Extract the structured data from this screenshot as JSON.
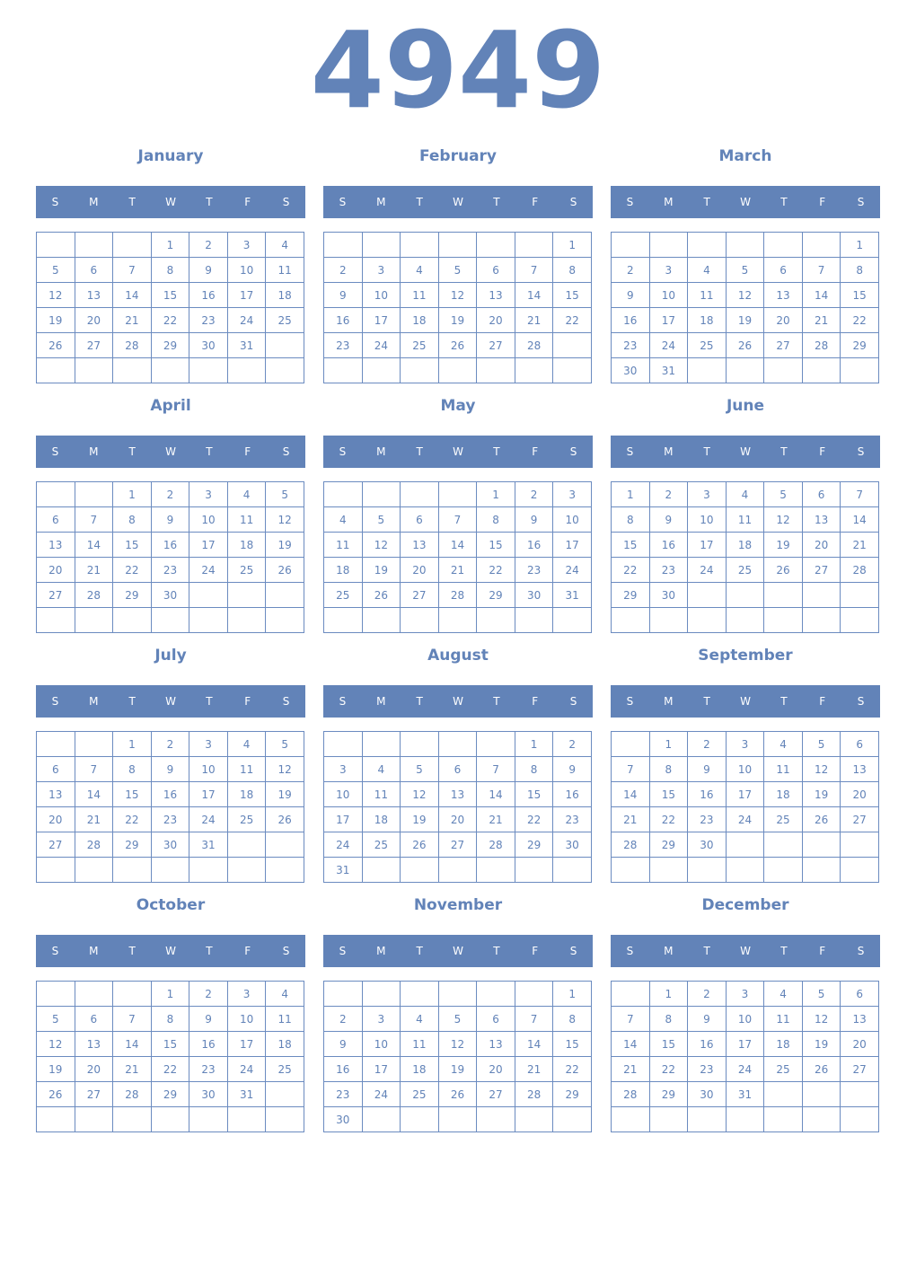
{
  "year": "4949",
  "weekday_labels": [
    "S",
    "M",
    "T",
    "W",
    "T",
    "F",
    "S"
  ],
  "colors": {
    "accent": "#6283b8",
    "header_text": "#ffffff"
  },
  "months": [
    {
      "name": "January",
      "weeks": [
        [
          "",
          "",
          "",
          1,
          2,
          3,
          4
        ],
        [
          5,
          6,
          7,
          8,
          9,
          10,
          11
        ],
        [
          12,
          13,
          14,
          15,
          16,
          17,
          18
        ],
        [
          19,
          20,
          21,
          22,
          23,
          24,
          25
        ],
        [
          26,
          27,
          28,
          29,
          30,
          31,
          ""
        ],
        [
          "",
          "",
          "",
          "",
          "",
          "",
          ""
        ]
      ]
    },
    {
      "name": "February",
      "weeks": [
        [
          "",
          "",
          "",
          "",
          "",
          "",
          1
        ],
        [
          2,
          3,
          4,
          5,
          6,
          7,
          8
        ],
        [
          9,
          10,
          11,
          12,
          13,
          14,
          15
        ],
        [
          16,
          17,
          18,
          19,
          20,
          21,
          22
        ],
        [
          23,
          24,
          25,
          26,
          27,
          28,
          ""
        ],
        [
          "",
          "",
          "",
          "",
          "",
          "",
          ""
        ]
      ]
    },
    {
      "name": "March",
      "weeks": [
        [
          "",
          "",
          "",
          "",
          "",
          "",
          1
        ],
        [
          2,
          3,
          4,
          5,
          6,
          7,
          8
        ],
        [
          9,
          10,
          11,
          12,
          13,
          14,
          15
        ],
        [
          16,
          17,
          18,
          19,
          20,
          21,
          22
        ],
        [
          23,
          24,
          25,
          26,
          27,
          28,
          29
        ],
        [
          30,
          31,
          "",
          "",
          "",
          "",
          ""
        ]
      ]
    },
    {
      "name": "April",
      "weeks": [
        [
          "",
          "",
          1,
          2,
          3,
          4,
          5
        ],
        [
          6,
          7,
          8,
          9,
          10,
          11,
          12
        ],
        [
          13,
          14,
          15,
          16,
          17,
          18,
          19
        ],
        [
          20,
          21,
          22,
          23,
          24,
          25,
          26
        ],
        [
          27,
          28,
          29,
          30,
          "",
          "",
          ""
        ],
        [
          "",
          "",
          "",
          "",
          "",
          "",
          ""
        ]
      ]
    },
    {
      "name": "May",
      "weeks": [
        [
          "",
          "",
          "",
          "",
          1,
          2,
          3
        ],
        [
          4,
          5,
          6,
          7,
          8,
          9,
          10
        ],
        [
          11,
          12,
          13,
          14,
          15,
          16,
          17
        ],
        [
          18,
          19,
          20,
          21,
          22,
          23,
          24
        ],
        [
          25,
          26,
          27,
          28,
          29,
          30,
          31
        ],
        [
          "",
          "",
          "",
          "",
          "",
          "",
          ""
        ]
      ]
    },
    {
      "name": "June",
      "weeks": [
        [
          1,
          2,
          3,
          4,
          5,
          6,
          7
        ],
        [
          8,
          9,
          10,
          11,
          12,
          13,
          14
        ],
        [
          15,
          16,
          17,
          18,
          19,
          20,
          21
        ],
        [
          22,
          23,
          24,
          25,
          26,
          27,
          28
        ],
        [
          29,
          30,
          "",
          "",
          "",
          "",
          ""
        ],
        [
          "",
          "",
          "",
          "",
          "",
          "",
          ""
        ]
      ]
    },
    {
      "name": "July",
      "weeks": [
        [
          "",
          "",
          1,
          2,
          3,
          4,
          5
        ],
        [
          6,
          7,
          8,
          9,
          10,
          11,
          12
        ],
        [
          13,
          14,
          15,
          16,
          17,
          18,
          19
        ],
        [
          20,
          21,
          22,
          23,
          24,
          25,
          26
        ],
        [
          27,
          28,
          29,
          30,
          31,
          "",
          ""
        ],
        [
          "",
          "",
          "",
          "",
          "",
          "",
          ""
        ]
      ]
    },
    {
      "name": "August",
      "weeks": [
        [
          "",
          "",
          "",
          "",
          "",
          1,
          2
        ],
        [
          3,
          4,
          5,
          6,
          7,
          8,
          9
        ],
        [
          10,
          11,
          12,
          13,
          14,
          15,
          16
        ],
        [
          17,
          18,
          19,
          20,
          21,
          22,
          23
        ],
        [
          24,
          25,
          26,
          27,
          28,
          29,
          30
        ],
        [
          31,
          "",
          "",
          "",
          "",
          "",
          ""
        ]
      ]
    },
    {
      "name": "September",
      "weeks": [
        [
          "",
          1,
          2,
          3,
          4,
          5,
          6
        ],
        [
          7,
          8,
          9,
          10,
          11,
          12,
          13
        ],
        [
          14,
          15,
          16,
          17,
          18,
          19,
          20
        ],
        [
          21,
          22,
          23,
          24,
          25,
          26,
          27
        ],
        [
          28,
          29,
          30,
          "",
          "",
          "",
          ""
        ],
        [
          "",
          "",
          "",
          "",
          "",
          "",
          ""
        ]
      ]
    },
    {
      "name": "October",
      "weeks": [
        [
          "",
          "",
          "",
          1,
          2,
          3,
          4
        ],
        [
          5,
          6,
          7,
          8,
          9,
          10,
          11
        ],
        [
          12,
          13,
          14,
          15,
          16,
          17,
          18
        ],
        [
          19,
          20,
          21,
          22,
          23,
          24,
          25
        ],
        [
          26,
          27,
          28,
          29,
          30,
          31,
          ""
        ],
        [
          "",
          "",
          "",
          "",
          "",
          "",
          ""
        ]
      ]
    },
    {
      "name": "November",
      "weeks": [
        [
          "",
          "",
          "",
          "",
          "",
          "",
          1
        ],
        [
          2,
          3,
          4,
          5,
          6,
          7,
          8
        ],
        [
          9,
          10,
          11,
          12,
          13,
          14,
          15
        ],
        [
          16,
          17,
          18,
          19,
          20,
          21,
          22
        ],
        [
          23,
          24,
          25,
          26,
          27,
          28,
          29
        ],
        [
          30,
          "",
          "",
          "",
          "",
          "",
          ""
        ]
      ]
    },
    {
      "name": "December",
      "weeks": [
        [
          "",
          1,
          2,
          3,
          4,
          5,
          6
        ],
        [
          7,
          8,
          9,
          10,
          11,
          12,
          13
        ],
        [
          14,
          15,
          16,
          17,
          18,
          19,
          20
        ],
        [
          21,
          22,
          23,
          24,
          25,
          26,
          27
        ],
        [
          28,
          29,
          30,
          31,
          "",
          "",
          ""
        ],
        [
          "",
          "",
          "",
          "",
          "",
          "",
          ""
        ]
      ]
    }
  ]
}
